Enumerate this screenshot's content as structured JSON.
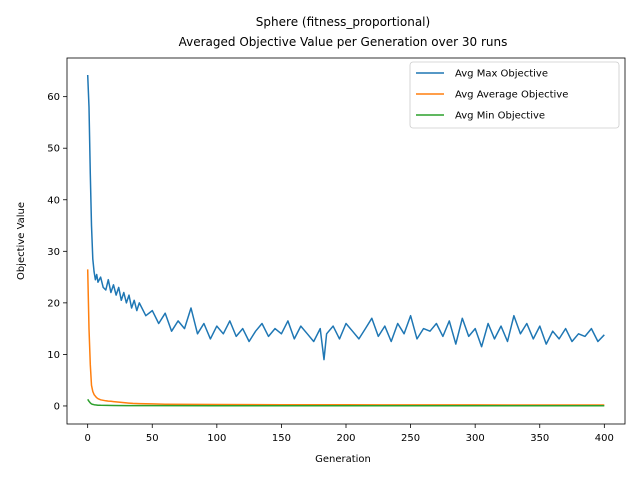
{
  "chart_data": {
    "type": "line",
    "title": "Sphere (fitness_proportional)",
    "subtitle": "Averaged Objective Value per Generation over 30 runs",
    "xlabel": "Generation",
    "ylabel": "Objective Value",
    "xlim": [
      -16,
      416
    ],
    "ylim": [
      -3.5,
      67.5
    ],
    "xticks": [
      0,
      50,
      100,
      150,
      200,
      250,
      300,
      350,
      400
    ],
    "yticks": [
      0,
      10,
      20,
      30,
      40,
      50,
      60
    ],
    "grid": false,
    "legend_position": "top-right",
    "series": [
      {
        "name": "Avg Max Objective",
        "color": "#1f77b4",
        "x": [
          0,
          1,
          2,
          3,
          4,
          5,
          6,
          7,
          8,
          10,
          12,
          14,
          16,
          18,
          20,
          22,
          24,
          26,
          28,
          30,
          32,
          34,
          36,
          38,
          40,
          45,
          50,
          55,
          60,
          65,
          70,
          75,
          80,
          85,
          90,
          95,
          100,
          105,
          110,
          115,
          120,
          125,
          130,
          135,
          140,
          145,
          150,
          155,
          160,
          165,
          170,
          175,
          180,
          183,
          185,
          190,
          195,
          200,
          205,
          210,
          215,
          220,
          225,
          230,
          235,
          240,
          245,
          250,
          255,
          260,
          265,
          270,
          275,
          280,
          285,
          290,
          295,
          300,
          305,
          310,
          315,
          320,
          325,
          330,
          335,
          340,
          345,
          350,
          355,
          360,
          365,
          370,
          375,
          380,
          385,
          390,
          395,
          400
        ],
        "y": [
          64.2,
          58,
          45,
          35,
          28.5,
          26,
          24.5,
          25.5,
          24,
          25,
          23,
          22.5,
          24.5,
          22,
          23.5,
          21.5,
          23,
          20.5,
          22,
          20,
          21.5,
          19,
          20.5,
          18.5,
          20,
          17.5,
          18.5,
          16,
          18,
          14.5,
          16.5,
          15,
          19,
          14,
          16,
          13,
          15.5,
          14,
          16.5,
          13.5,
          15,
          12.5,
          14.5,
          16,
          13.5,
          15,
          14,
          16.5,
          13,
          15.5,
          14,
          12.5,
          15,
          9,
          14,
          15.5,
          13,
          16,
          14.5,
          13,
          15,
          17,
          13.5,
          15.5,
          12.5,
          16,
          14,
          17.5,
          13,
          15,
          14.5,
          16,
          13.5,
          16.5,
          12,
          17,
          13.5,
          15,
          11.5,
          16,
          13,
          15.5,
          12.5,
          17.5,
          14,
          16,
          13,
          15.5,
          12,
          14.5,
          13,
          15,
          12.5,
          14,
          13.5,
          15,
          12.5,
          13.8
        ]
      },
      {
        "name": "Avg Average Objective",
        "color": "#ff7f0e",
        "x": [
          0,
          1,
          2,
          3,
          4,
          5,
          6,
          7,
          8,
          10,
          12,
          14,
          16,
          18,
          20,
          25,
          30,
          35,
          40,
          50,
          60,
          80,
          100,
          150,
          200,
          250,
          300,
          350,
          400
        ],
        "y": [
          26.5,
          15,
          8,
          4,
          2.8,
          2.2,
          1.9,
          1.6,
          1.4,
          1.2,
          1.1,
          1.0,
          0.95,
          0.9,
          0.85,
          0.7,
          0.6,
          0.5,
          0.45,
          0.4,
          0.35,
          0.3,
          0.28,
          0.25,
          0.22,
          0.2,
          0.2,
          0.18,
          0.18
        ]
      },
      {
        "name": "Avg Min Objective",
        "color": "#2ca02c",
        "x": [
          0,
          1,
          2,
          3,
          4,
          5,
          6,
          8,
          10,
          15,
          20,
          30,
          50,
          100,
          200,
          300,
          400
        ],
        "y": [
          1.3,
          0.9,
          0.6,
          0.4,
          0.3,
          0.25,
          0.2,
          0.15,
          0.12,
          0.1,
          0.08,
          0.07,
          0.06,
          0.05,
          0.05,
          0.05,
          0.05
        ]
      }
    ]
  }
}
